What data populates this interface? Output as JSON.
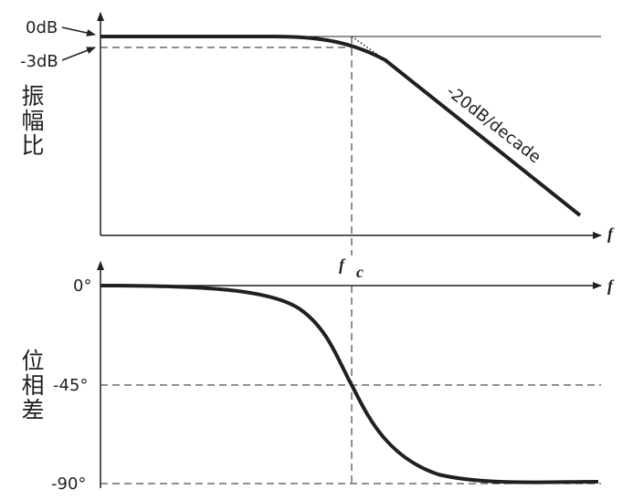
{
  "magnitude": {
    "zero_label": "0dB",
    "minus3_label": "-3dB",
    "axis_title": "振幅比",
    "slope_label": "-20dB/decade",
    "x_axis_label": "f"
  },
  "phase": {
    "zero_label": "0°",
    "minus45_label": "-45°",
    "minus90_label": "-90°",
    "axis_title": "位相差",
    "x_axis_label": "f"
  },
  "cutoff": {
    "symbol": "f",
    "subscript": "c"
  }
}
